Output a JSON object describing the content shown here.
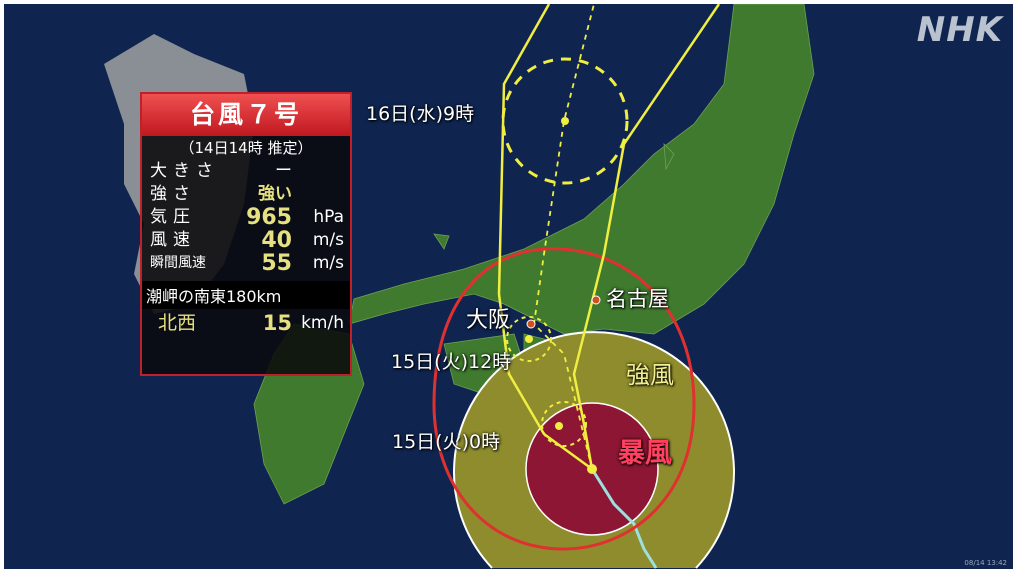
{
  "logo": "NHK",
  "timestamp": "08/14 13:42",
  "colors": {
    "sea": "#0f2550",
    "land": "#3f7a2e",
    "gale_area": "#8e8c2c",
    "storm_area": "#8c1633",
    "forecast_circle": "#e03030",
    "track": "#f0ee40"
  },
  "info_box": {
    "title": "台風７号",
    "as_of": "（14日14時 推定）",
    "rows": [
      {
        "label": "大きさ",
        "value": "ー",
        "unit": ""
      },
      {
        "label": "強さ",
        "value": "強い",
        "unit": ""
      },
      {
        "label": "気圧",
        "value": "965",
        "unit": "hPa"
      },
      {
        "label": "風速",
        "value": "40",
        "unit": "m/s"
      },
      {
        "label": "瞬間風速",
        "value": "55",
        "unit": "m/s"
      }
    ],
    "location": "潮岬の南東180km",
    "direction": "北西",
    "speed": "15",
    "speed_unit": "km/h"
  },
  "labels": {
    "t16": "16日(水)9時",
    "t15_12": "15日(火)12時",
    "t15_0": "15日(火)0時",
    "osaka": "大阪",
    "nagoya": "名古屋",
    "gale": "強風",
    "storm": "暴風"
  }
}
